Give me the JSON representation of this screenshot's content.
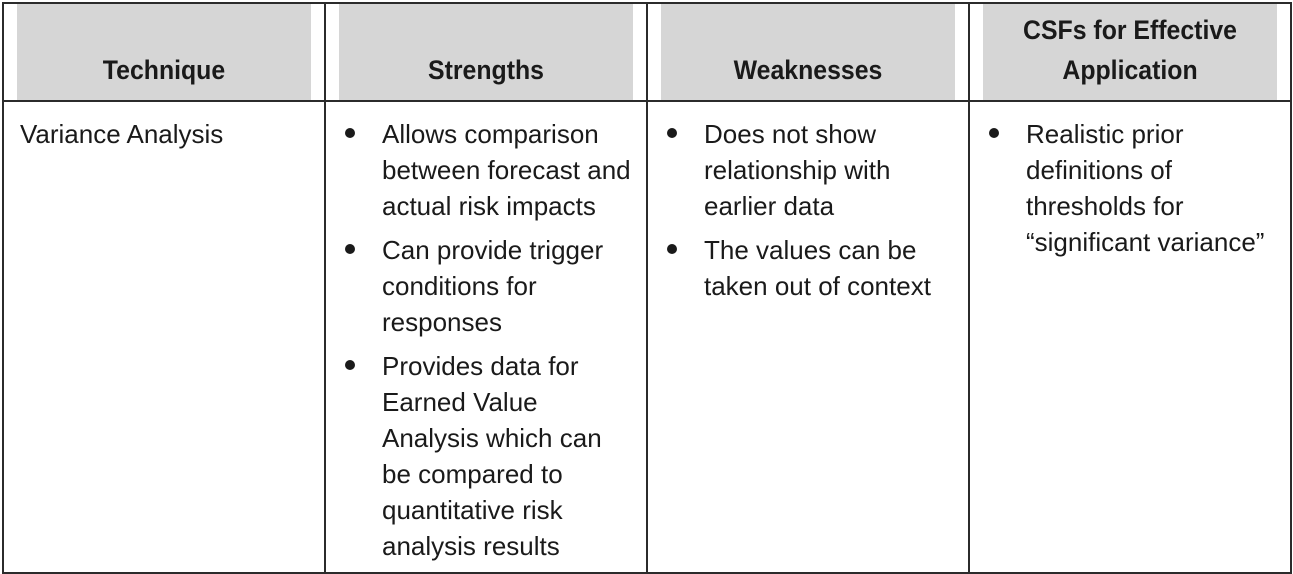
{
  "headers": {
    "technique": "Technique",
    "strengths": "Strengths",
    "weaknesses": "Weaknesses",
    "csfs": "CSFs for Effective Application"
  },
  "row": {
    "technique": "Variance Analysis",
    "strengths": [
      "Allows comparison between forecast and actual risk impacts",
      "Can provide trigger conditions for responses",
      "Provides data for Earned Value Analysis which can be compared to quantitative risk analysis results"
    ],
    "weaknesses": [
      "Does not show relationship with earlier data",
      "The values can be taken out of context"
    ],
    "csfs": [
      "Realistic prior definitions of thresholds for “significant variance”"
    ]
  }
}
